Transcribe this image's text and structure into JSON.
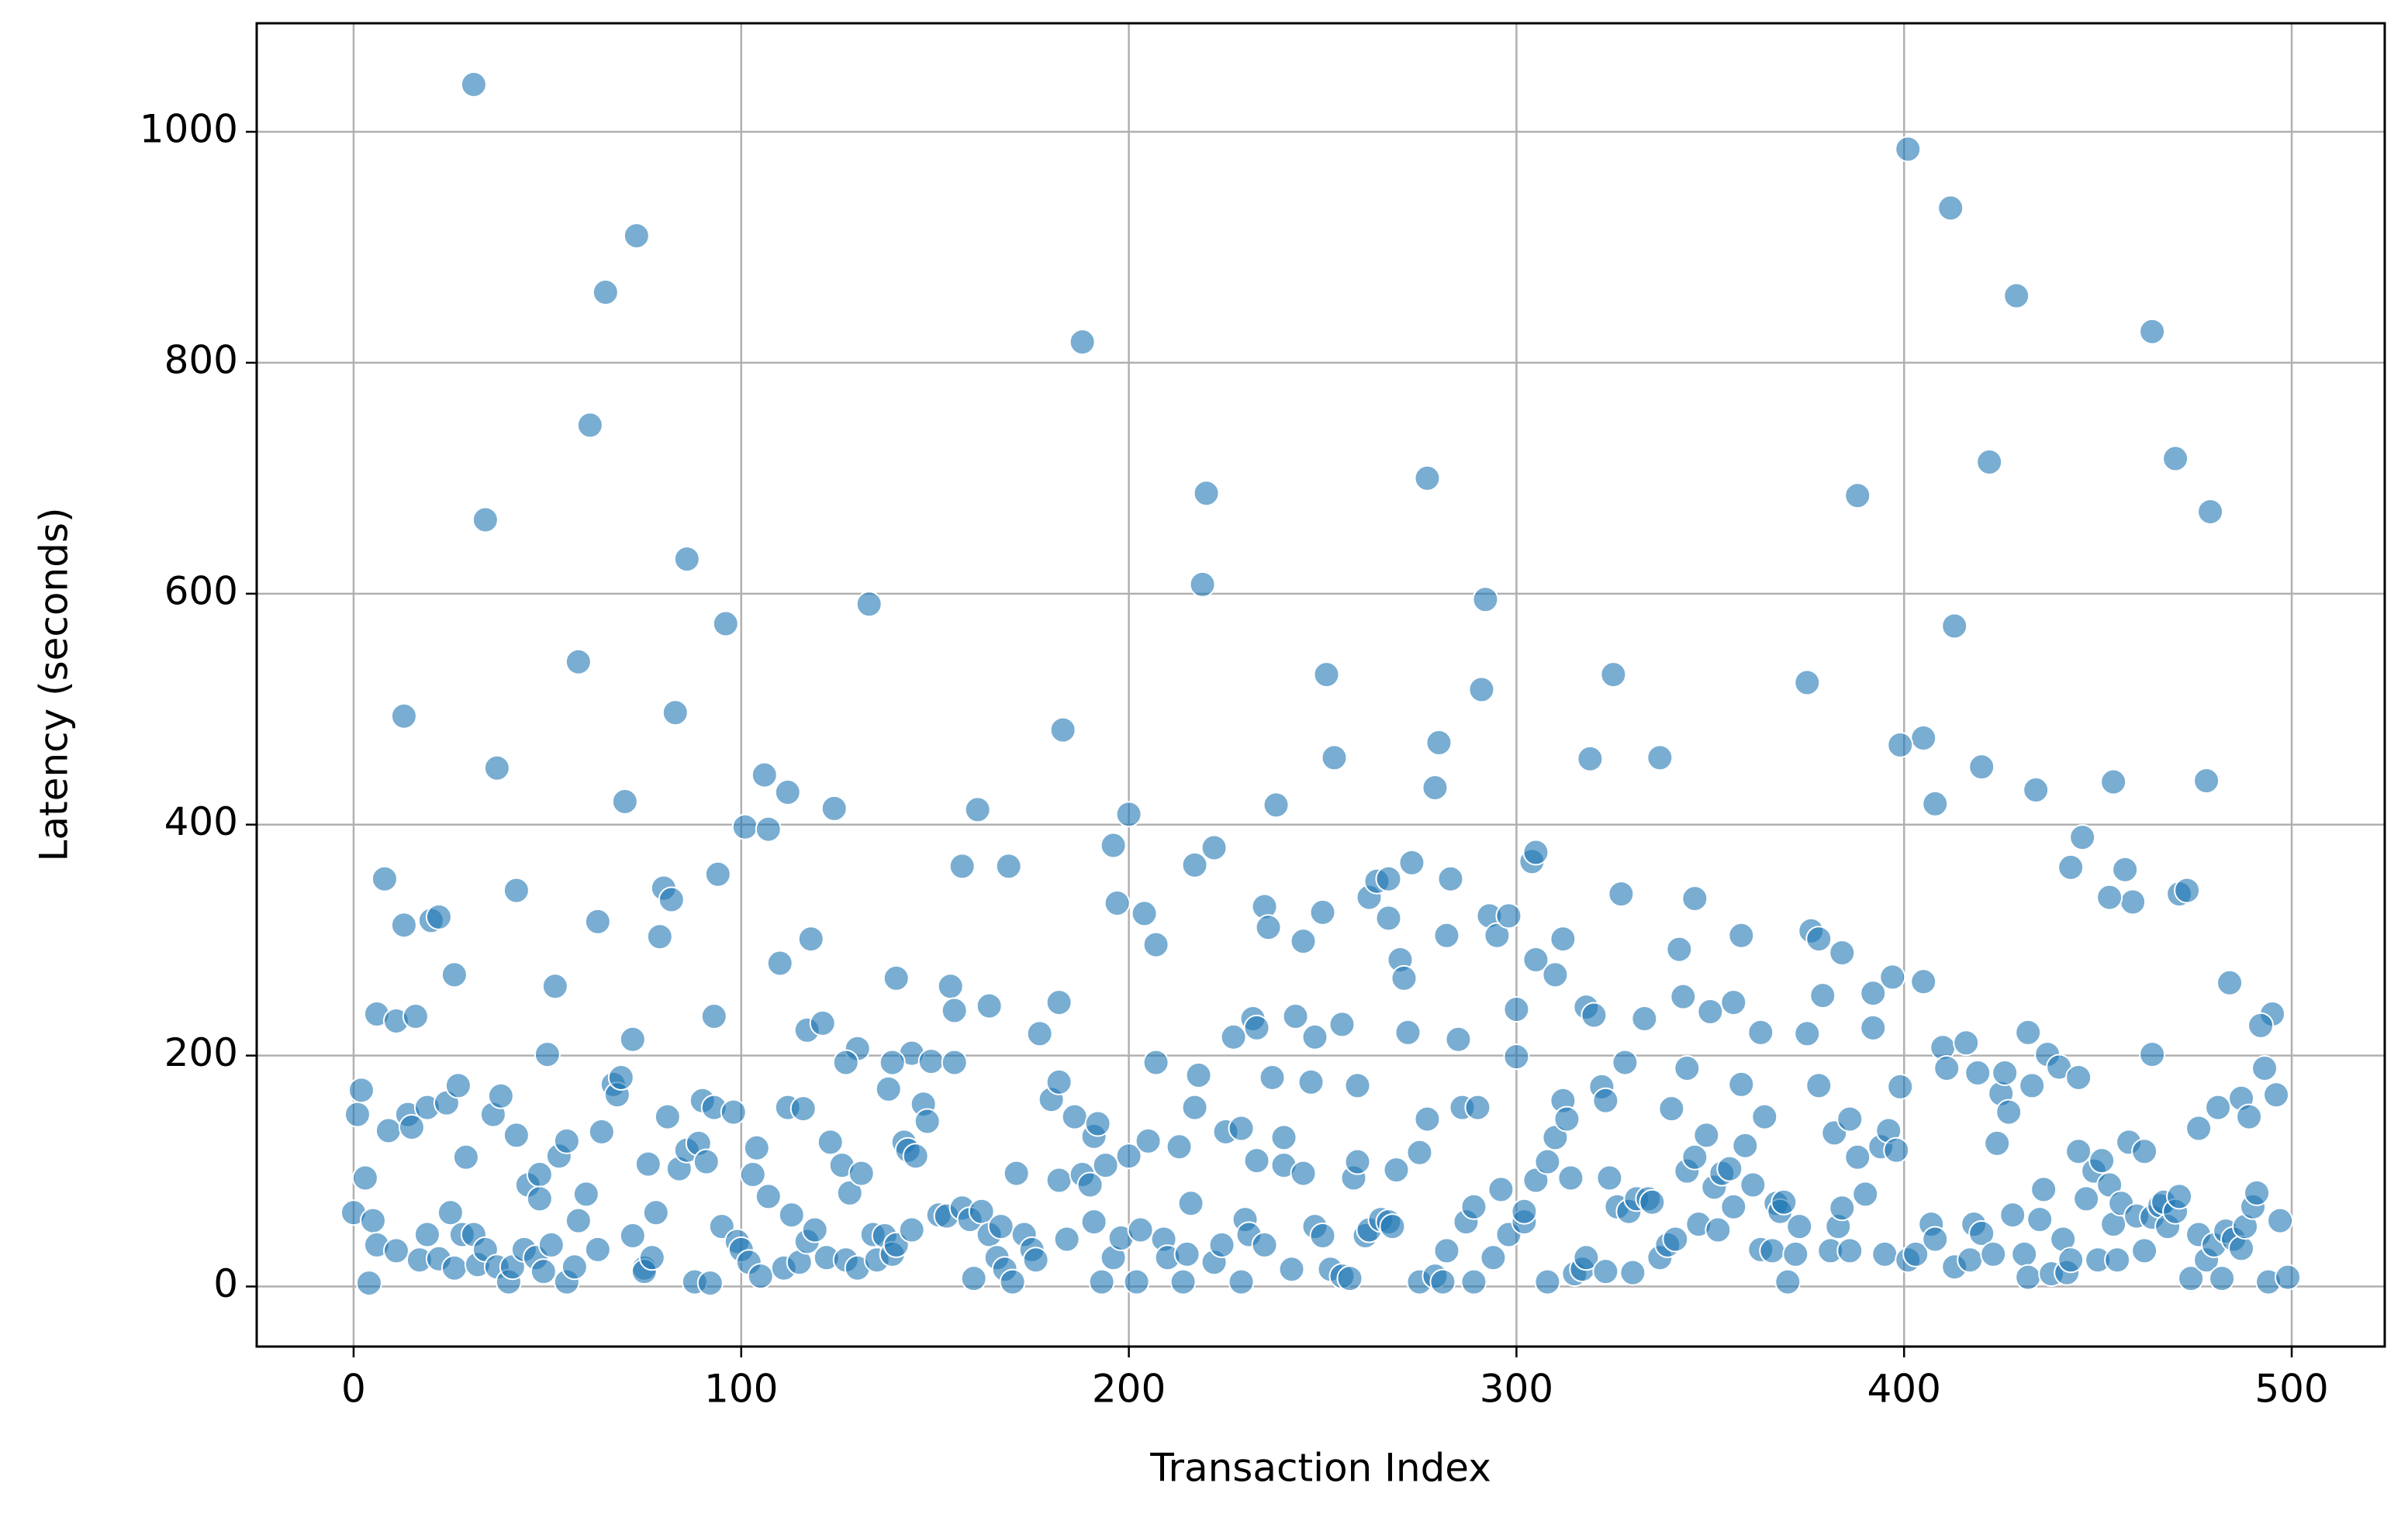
{
  "chart_data": {
    "type": "scatter",
    "x_label": "Transaction Index",
    "y_label": "Latency (seconds)",
    "color": "#1f77b4",
    "grid": true,
    "xlim": [
      -25,
      524
    ],
    "ylim": [
      -52,
      1094
    ],
    "xticks": [
      0,
      100,
      200,
      300,
      400,
      500
    ],
    "yticks": [
      0,
      200,
      400,
      600,
      800,
      1000
    ],
    "x": [
      31,
      34,
      61,
      65,
      73,
      58,
      86,
      83,
      96,
      13,
      37,
      70,
      133,
      183,
      188,
      220,
      219,
      277,
      292,
      291,
      251,
      253,
      280,
      279,
      325,
      319,
      337,
      375,
      388,
      401,
      412,
      405,
      399,
      408,
      413,
      422,
      420,
      429,
      434,
      464,
      470,
      479,
      478,
      454,
      446,
      443,
      457,
      459,
      453,
      471,
      473,
      464,
      484,
      495,
      492,
      493,
      496,
      476,
      481,
      487,
      489,
      101,
      106,
      107,
      112,
      124,
      161,
      157,
      169,
      196,
      200,
      197,
      204,
      207,
      217,
      222,
      238,
      235,
      236,
      245,
      250,
      262,
      264,
      267,
      267,
      273,
      270,
      271,
      283,
      282,
      293,
      295,
      298,
      304,
      305,
      305,
      312,
      310,
      300,
      300,
      327,
      346,
      342,
      358,
      376,
      378,
      379,
      384,
      397,
      405,
      392,
      8,
      13,
      20,
      22,
      26,
      42,
      63,
      80,
      82,
      79,
      94,
      52,
      6,
      11,
      16,
      72,
      93,
      110,
      118,
      117,
      121,
      130,
      140,
      127,
      154,
      155,
      144,
      149,
      155,
      164,
      177,
      182,
      139,
      138,
      0,
      1,
      2,
      3,
      4,
      5,
      6,
      9,
      11,
      14,
      15,
      17,
      19,
      19,
      22,
      24,
      25,
      26,
      27,
      28,
      29,
      31,
      32,
      34,
      36,
      37,
      38,
      40,
      41,
      42,
      44,
      45,
      47,
      48,
      48,
      49,
      50,
      51,
      53,
      55,
      55,
      57,
      58,
      60,
      64,
      63,
      67,
      68,
      69,
      72,
      75,
      75,
      77,
      76,
      78,
      81,
      84,
      86,
      88,
      89,
      90,
      91,
      92,
      93,
      95,
      98,
      99,
      100,
      102,
      103,
      104,
      105,
      107,
      111,
      112,
      113,
      115,
      116,
      117,
      119,
      122,
      123,
      126,
      127,
      128,
      130,
      131,
      134,
      135,
      137,
      139,
      140,
      142,
      143,
      145,
      144,
      147,
      148,
      151,
      153,
      157,
      159,
      160,
      162,
      164,
      166,
      167,
      168,
      170,
      171,
      173,
      175,
      176,
      180,
      182,
      182,
      184,
      186,
      188,
      190,
      191,
      192,
      191,
      193,
      194,
      196,
      198,
      200,
      202,
      203,
      205,
      207,
      209,
      210,
      213,
      214,
      215,
      216,
      217,
      218,
      222,
      224,
      225,
      227,
      229,
      229,
      230,
      231,
      232,
      233,
      235,
      233,
      237,
      240,
      240,
      242,
      243,
      245,
      247,
      248,
      248,
      250,
      252,
      255,
      255,
      257,
      258,
      259,
      259,
      261,
      262,
      265,
      267,
      268,
      269,
      272,
      275,
      275,
      277,
      279,
      281,
      282,
      285,
      286,
      287,
      289,
      289,
      290,
      294,
      296,
      298,
      302,
      302,
      305,
      308,
      308,
      310,
      312,
      313,
      314,
      315,
      317,
      318,
      318,
      320,
      322,
      323,
      323,
      324,
      326,
      328,
      329,
      330,
      331,
      333,
      334,
      335,
      337,
      339,
      340,
      341,
      343,
      344,
      346,
      344,
      347,
      349,
      350,
      351,
      352,
      353,
      355,
      356,
      356,
      358,
      359,
      361,
      363,
      363,
      364,
      366,
      367,
      368,
      369,
      370,
      372,
      373,
      375,
      378,
      381,
      382,
      383,
      384,
      386,
      386,
      388,
      390,
      392,
      394,
      395,
      396,
      398,
      399,
      401,
      403,
      407,
      408,
      410,
      411,
      413,
      416,
      417,
      418,
      419,
      420,
      423,
      424,
      425,
      427,
      426,
      428,
      431,
      432,
      432,
      433,
      435,
      436,
      437,
      438,
      440,
      441,
      442,
      443,
      445,
      445,
      447,
      449,
      450,
      451,
      453,
      454,
      455,
      456,
      458,
      460,
      462,
      462,
      464,
      466,
      467,
      468,
      470,
      471,
      474,
      476,
      478,
      480,
      482,
      483,
      485,
      487,
      488,
      490,
      491,
      494,
      497,
      499
    ],
    "values": [
      1041,
      664,
      746,
      861,
      910,
      541,
      630,
      497,
      574,
      494,
      449,
      420,
      591,
      482,
      818,
      687,
      608,
      700,
      595,
      517,
      530,
      458,
      471,
      432,
      530,
      457,
      458,
      523,
      685,
      985,
      934,
      475,
      469,
      418,
      572,
      714,
      450,
      858,
      430,
      827,
      717,
      671,
      438,
      437,
      389,
      363,
      361,
      333,
      337,
      340,
      343,
      201,
      263,
      236,
      226,
      189,
      166,
      137,
      155,
      163,
      147,
      398,
      443,
      396,
      428,
      414,
      413,
      364,
      364,
      382,
      409,
      332,
      323,
      296,
      365,
      380,
      417,
      329,
      311,
      299,
      324,
      337,
      351,
      353,
      319,
      367,
      283,
      267,
      353,
      304,
      321,
      304,
      321,
      368,
      376,
      283,
      301,
      270,
      240,
      199,
      340,
      336,
      292,
      304,
      308,
      301,
      252,
      289,
      268,
      264,
      254,
      353,
      313,
      317,
      320,
      270,
      343,
      316,
      345,
      335,
      303,
      357,
      260,
      236,
      230,
      234,
      214,
      234,
      280,
      301,
      222,
      228,
      206,
      267,
      194,
      260,
      239,
      202,
      195,
      194,
      243,
      219,
      246,
      194,
      171,
      64,
      149,
      170,
      94,
      3,
      57,
      36,
      135,
      31,
      149,
      138,
      23,
      45,
      155,
      24,
      159,
      64,
      16,
      174,
      45,
      112,
      45,
      19,
      32,
      149,
      17,
      165,
      4,
      17,
      131,
      32,
      88,
      25,
      97,
      76,
      13,
      201,
      36,
      113,
      4,
      126,
      17,
      57,
      80,
      134,
      32,
      175,
      166,
      181,
      44,
      16,
      13,
      25,
      106,
      64,
      147,
      102,
      118,
      4,
      124,
      161,
      108,
      3,
      155,
      52,
      151,
      39,
      32,
      21,
      97,
      120,
      9,
      78,
      16,
      155,
      62,
      21,
      154,
      39,
      49,
      25,
      125,
      105,
      23,
      81,
      16,
      98,
      45,
      23,
      44,
      28,
      36,
      125,
      118,
      113,
      49,
      158,
      143,
      62,
      61,
      68,
      58,
      7,
      65,
      45,
      25,
      52,
      15,
      4,
      98,
      45,
      32,
      23,
      162,
      177,
      92,
      41,
      147,
      97,
      88,
      130,
      141,
      56,
      4,
      105,
      25,
      42,
      113,
      4,
      49,
      126,
      194,
      41,
      25,
      121,
      4,
      28,
      72,
      155,
      183,
      21,
      36,
      134,
      216,
      4,
      137,
      58,
      45,
      232,
      224,
      36,
      109,
      181,
      105,
      129,
      15,
      234,
      98,
      177,
      216,
      52,
      44,
      15,
      227,
      9,
      7,
      94,
      108,
      174,
      44,
      49,
      58,
      56,
      52,
      101,
      220,
      4,
      116,
      145,
      9,
      4,
      31,
      214,
      155,
      56,
      4,
      69,
      155,
      25,
      84,
      45,
      56,
      65,
      92,
      108,
      4,
      129,
      161,
      145,
      94,
      11,
      15,
      25,
      242,
      235,
      173,
      161,
      13,
      94,
      69,
      194,
      65,
      12,
      76,
      232,
      76,
      73,
      25,
      36,
      154,
      41,
      251,
      100,
      112,
      189,
      54,
      131,
      238,
      86,
      49,
      98,
      102,
      69,
      246,
      175,
      122,
      88,
      32,
      220,
      147,
      31,
      72,
      65,
      73,
      4,
      28,
      52,
      219,
      174,
      31,
      133,
      52,
      68,
      145,
      31,
      112,
      80,
      224,
      121,
      28,
      135,
      118,
      173,
      23,
      28,
      54,
      41,
      207,
      189,
      17,
      211,
      23,
      54,
      185,
      46,
      28,
      124,
      167,
      151,
      185,
      62,
      28,
      8,
      220,
      174,
      58,
      84,
      201,
      11,
      190,
      41,
      12,
      23,
      117,
      181,
      76,
      100,
      23,
      109,
      88,
      54,
      23,
      72,
      125,
      61,
      31,
      117,
      60,
      70,
      73,
      52,
      65,
      78,
      7,
      45,
      23,
      36,
      7,
      48,
      41,
      33,
      52,
      69,
      81,
      4,
      57,
      8
    ]
  }
}
